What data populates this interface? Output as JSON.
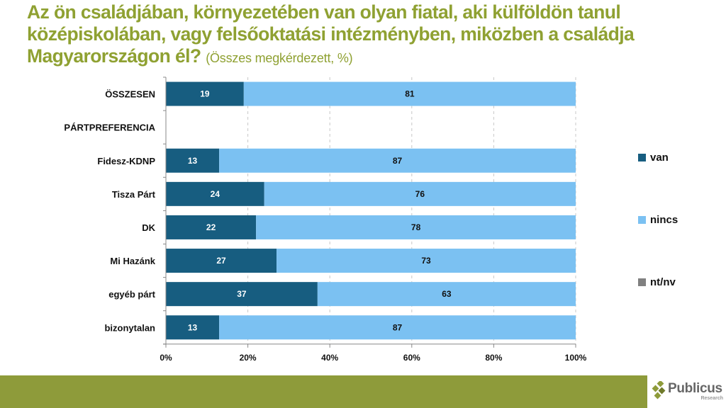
{
  "title": {
    "main": "Az ön családjában, környezetében van olyan fiatal, aki külföldön tanul középiskolában, vagy felsőoktatási intézményben, miközben a családja Magyarországon él?",
    "sub": "(Összes megkérdezett, %)"
  },
  "chart_data": {
    "type": "bar",
    "orientation": "horizontal",
    "stacked": true,
    "percent_stacked": true,
    "title": "Az ön családjában, környezetében van olyan fiatal, aki külföldön tanul középiskolában, vagy felsőoktatási intézményben, miközben a családja Magyarországon él? (Összes megkérdezett, %)",
    "categories": [
      "ÖSSZESEN",
      "PÁRTPREFERENCIA",
      "Fidesz-KDNP",
      "Tisza Párt",
      "DK",
      "Mi Hazánk",
      "egyéb párt",
      "bizonytalan"
    ],
    "series": [
      {
        "name": "van",
        "color": "#175d80",
        "label_color": "#ffffff",
        "values": [
          19,
          null,
          13,
          24,
          22,
          27,
          37,
          13
        ]
      },
      {
        "name": "nincs",
        "color": "#7bc1f2",
        "label_color": "#111111",
        "values": [
          81,
          null,
          87,
          76,
          78,
          73,
          63,
          87
        ]
      },
      {
        "name": "nt/nv",
        "color": "#808080",
        "label_color": "#111111",
        "values": [
          0,
          null,
          0,
          0,
          0,
          0,
          0,
          0
        ]
      }
    ],
    "xlabel": "",
    "ylabel": "",
    "xlim": [
      0,
      100
    ],
    "x_ticks": [
      "0%",
      "20%",
      "40%",
      "60%",
      "80%",
      "100%"
    ],
    "grid": "vertical dashed",
    "legend_position": "right"
  },
  "branding": {
    "logo_name": "Publicus",
    "logo_sub": "Research",
    "footer_color": "#8e9b3a",
    "title_color": "#8fa132"
  }
}
